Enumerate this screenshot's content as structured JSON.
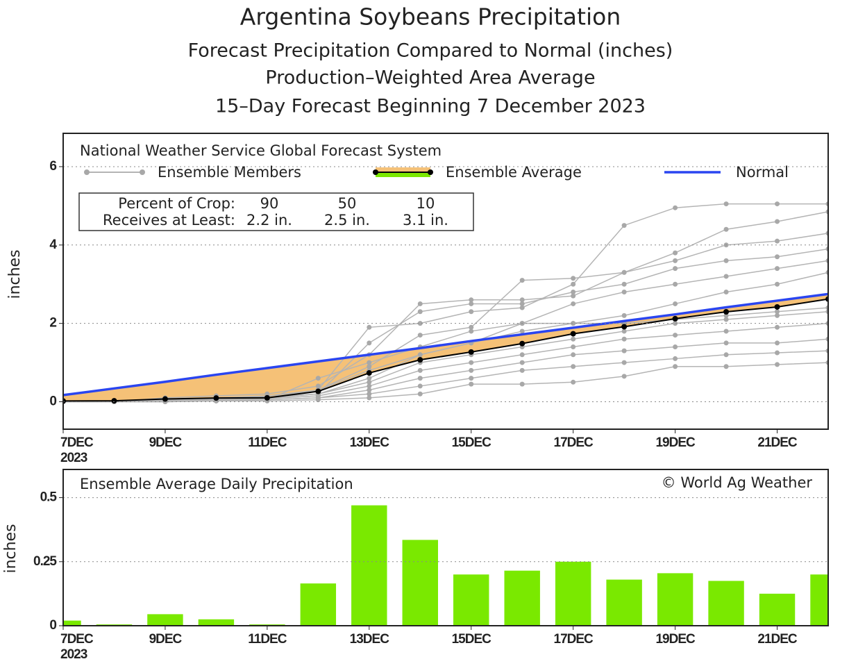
{
  "chart_data": [
    {
      "type": "line",
      "title": "Argentina Soybeans Precipitation",
      "subtitles": [
        "Forecast Precipitation Compared to Normal (inches)",
        "Production–Weighted Area Average",
        "15–Day Forecast Beginning 7 December 2023"
      ],
      "legend_title": "National Weather Service Global Forecast System",
      "y_label": "inches",
      "x_year": "2023",
      "crop_table": {
        "rows": [
          [
            "Percent of Crop:",
            90,
            50,
            10
          ],
          [
            "Receives at Least:",
            "2.2 in.",
            "2.5 in.",
            "3.1 in."
          ]
        ]
      },
      "x": [
        7,
        8,
        9,
        10,
        11,
        12,
        13,
        14,
        15,
        16,
        17,
        18,
        19,
        20,
        21,
        22
      ],
      "xlim": [
        7,
        22
      ],
      "xticks": [
        {
          "value": 7,
          "label": "7DEC"
        },
        {
          "value": 9,
          "label": "9DEC"
        },
        {
          "value": 11,
          "label": "11DEC"
        },
        {
          "value": 13,
          "label": "13DEC"
        },
        {
          "value": 15,
          "label": "15DEC"
        },
        {
          "value": 17,
          "label": "17DEC"
        },
        {
          "value": 19,
          "label": "19DEC"
        },
        {
          "value": 21,
          "label": "21DEC"
        }
      ],
      "ylim": [
        -0.7,
        6.85
      ],
      "yticks": [
        0,
        2,
        4,
        6
      ],
      "grid": true,
      "series": [
        {
          "name": "Ensemble Members",
          "color": "#b4b4b4",
          "members": [
            [
              0,
              0,
              0.05,
              0.1,
              0.1,
              0.3,
              1.9,
              2.0,
              2.3,
              2.4,
              3.0,
              4.5,
              4.95,
              5.05,
              5.05,
              5.05
            ],
            [
              0,
              0,
              0.1,
              0.15,
              0.2,
              0.4,
              1.2,
              2.5,
              2.6,
              2.6,
              2.7,
              3.3,
              3.8,
              4.4,
              4.6,
              4.85
            ],
            [
              0,
              0.02,
              0.05,
              0.1,
              0.15,
              0.3,
              0.9,
              1.7,
              1.9,
              3.1,
              3.15,
              3.3,
              3.6,
              4.0,
              4.1,
              4.3
            ],
            [
              0,
              0,
              0.03,
              0.05,
              0.1,
              0.2,
              1.5,
              2.3,
              2.5,
              2.5,
              2.8,
              3.0,
              3.4,
              3.6,
              3.7,
              3.9
            ],
            [
              0,
              0,
              0.02,
              0.05,
              0.05,
              0.6,
              1.0,
              1.4,
              1.8,
              2.0,
              2.5,
              2.8,
              3.0,
              3.2,
              3.4,
              3.6
            ],
            [
              0,
              0,
              0.05,
              0.1,
              0.12,
              0.2,
              0.6,
              1.2,
              1.5,
              1.8,
              2.0,
              2.2,
              2.5,
              2.8,
              3.0,
              3.3
            ],
            [
              0,
              0,
              0.05,
              0.08,
              0.1,
              0.2,
              0.5,
              1.0,
              1.2,
              1.4,
              1.6,
              1.8,
              2.0,
              2.1,
              2.2,
              2.3
            ],
            [
              0,
              0,
              0.02,
              0.05,
              0.08,
              0.15,
              0.4,
              0.8,
              1.0,
              1.2,
              1.4,
              1.6,
              1.7,
              1.8,
              1.9,
              2.0
            ],
            [
              0,
              0,
              0.03,
              0.05,
              0.05,
              0.1,
              0.3,
              0.6,
              0.8,
              1.0,
              1.2,
              1.3,
              1.4,
              1.5,
              1.5,
              1.6
            ],
            [
              0,
              0,
              0,
              0.02,
              0.05,
              0.1,
              0.2,
              0.4,
              0.6,
              0.8,
              0.9,
              1.0,
              1.1,
              1.2,
              1.25,
              1.3
            ],
            [
              0,
              0,
              0,
              0.02,
              0.02,
              0.05,
              0.1,
              0.2,
              0.45,
              0.45,
              0.5,
              0.65,
              0.9,
              0.9,
              0.95,
              1.0
            ],
            [
              0,
              0,
              0.02,
              0.05,
              0.1,
              0.3,
              0.8,
              1.2,
              1.5,
              2.0,
              2.0,
              2.0,
              2.1,
              2.2,
              2.3,
              2.4
            ]
          ]
        },
        {
          "name": "Ensemble Average",
          "color": "#000000",
          "fill_below_normal": "#f5c177",
          "fill_above_normal": "#7be800",
          "values": [
            0.02,
            0.025,
            0.07,
            0.095,
            0.1,
            0.265,
            0.735,
            1.07,
            1.27,
            1.485,
            1.735,
            1.915,
            2.12,
            2.295,
            2.42,
            2.62
          ]
        },
        {
          "name": "Normal",
          "color": "#2a45f0",
          "values": [
            0.17,
            0.34,
            0.51,
            0.69,
            0.86,
            1.03,
            1.2,
            1.37,
            1.55,
            1.72,
            1.89,
            2.06,
            2.23,
            2.41,
            2.58,
            2.75
          ]
        }
      ]
    },
    {
      "type": "bar",
      "title": "Ensemble Average Daily Precipitation",
      "credit": "© World Ag Weather",
      "y_label": "inches",
      "x_year": "2023",
      "x": [
        7,
        8,
        9,
        10,
        11,
        12,
        13,
        14,
        15,
        16,
        17,
        18,
        19,
        20,
        21,
        22
      ],
      "values": [
        0.02,
        0.005,
        0.045,
        0.025,
        0.005,
        0.165,
        0.47,
        0.335,
        0.2,
        0.215,
        0.25,
        0.18,
        0.205,
        0.175,
        0.125,
        0.2
      ],
      "color": "#7ae900",
      "xlim": [
        7,
        22
      ],
      "xticks": [
        {
          "value": 7,
          "label": "7DEC"
        },
        {
          "value": 9,
          "label": "9DEC"
        },
        {
          "value": 11,
          "label": "11DEC"
        },
        {
          "value": 13,
          "label": "13DEC"
        },
        {
          "value": 15,
          "label": "15DEC"
        },
        {
          "value": 17,
          "label": "17DEC"
        },
        {
          "value": 19,
          "label": "19DEC"
        },
        {
          "value": 21,
          "label": "21DEC"
        }
      ],
      "ylim": [
        0,
        0.61
      ],
      "yticks": [
        0,
        0.25,
        0.5
      ],
      "grid": true
    }
  ]
}
